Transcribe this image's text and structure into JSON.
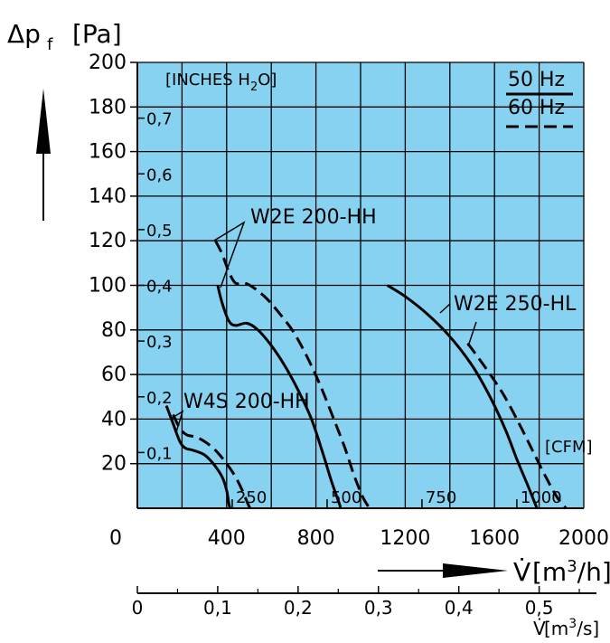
{
  "colors": {
    "plot_bg": "#87d2f0",
    "ink": "#000000",
    "page": "#ffffff"
  },
  "chart_data": {
    "type": "line",
    "title": "",
    "ylabel": {
      "symbol": "Δp",
      "sub": "f",
      "unit": "[Pa]"
    },
    "xlabel": {
      "symbol": "V̇",
      "unit_pre": "[m",
      "sup": "3",
      "unit_post": "/h]"
    },
    "xlabel2": {
      "symbol": "V̇",
      "unit_pre": "[m",
      "sup": "3",
      "unit_post": "/s]"
    },
    "xlim": [
      0,
      2000
    ],
    "ylim": [
      0,
      200
    ],
    "grid": true,
    "x_ticks": [
      "0",
      "400",
      "800",
      "1200",
      "1600",
      "2000"
    ],
    "y_ticks": [
      "20",
      "40",
      "60",
      "80",
      "100",
      "120",
      "140",
      "160",
      "180",
      "200"
    ],
    "x2_ticks": [
      "0",
      "0,1",
      "0,2",
      "0,3",
      "0,4",
      "0,5"
    ],
    "inches_label": {
      "pre": "[INCHES H",
      "sub": "2",
      "post": "O]"
    },
    "inches_ticks": [
      {
        "label": "0,1",
        "y": 25
      },
      {
        "label": "0,2",
        "y": 50
      },
      {
        "label": "0,3",
        "y": 75
      },
      {
        "label": "0,4",
        "y": 100
      },
      {
        "label": "0,5",
        "y": 125
      },
      {
        "label": "0,6",
        "y": 150
      },
      {
        "label": "0,7",
        "y": 175
      }
    ],
    "cfm_label": "[CFM]",
    "cfm_ticks": [
      {
        "label": "250",
        "x": 425
      },
      {
        "label": "500",
        "x": 850
      },
      {
        "label": "750",
        "x": 1275
      },
      {
        "label": "1000",
        "x": 1700
      }
    ],
    "legend": {
      "position": "top-right",
      "entries": [
        {
          "label": "50 Hz",
          "style": "solid"
        },
        {
          "label": "60 Hz",
          "style": "dashed"
        }
      ]
    },
    "series": [
      {
        "group": "W4S 200-HH",
        "freq": "50 Hz",
        "style": "solid",
        "points": [
          [
            130,
            46
          ],
          [
            160,
            38
          ],
          [
            190,
            30
          ],
          [
            215,
            27
          ],
          [
            250,
            26
          ],
          [
            300,
            24
          ],
          [
            340,
            20
          ],
          [
            380,
            14
          ],
          [
            400,
            8
          ],
          [
            410,
            2
          ],
          [
            415,
            0
          ]
        ]
      },
      {
        "group": "W4S 200-HH",
        "freq": "60 Hz",
        "style": "dashed",
        "points": [
          [
            160,
            42
          ],
          [
            190,
            36
          ],
          [
            220,
            33
          ],
          [
            260,
            32
          ],
          [
            300,
            30
          ],
          [
            350,
            26
          ],
          [
            400,
            20
          ],
          [
            440,
            14
          ],
          [
            470,
            8
          ],
          [
            495,
            2
          ],
          [
            505,
            0
          ]
        ]
      },
      {
        "group": "W2E 200-HH",
        "freq": "50 Hz",
        "style": "solid",
        "points": [
          [
            360,
            100
          ],
          [
            380,
            92
          ],
          [
            410,
            84
          ],
          [
            440,
            82
          ],
          [
            490,
            83
          ],
          [
            540,
            80
          ],
          [
            600,
            73
          ],
          [
            660,
            64
          ],
          [
            720,
            53
          ],
          [
            780,
            40
          ],
          [
            830,
            25
          ],
          [
            870,
            12
          ],
          [
            905,
            2
          ],
          [
            910,
            0
          ]
        ]
      },
      {
        "group": "W2E 200-HH",
        "freq": "60 Hz",
        "style": "dashed",
        "points": [
          [
            350,
            120
          ],
          [
            380,
            114
          ],
          [
            410,
            106
          ],
          [
            440,
            101
          ],
          [
            480,
            101
          ],
          [
            520,
            99
          ],
          [
            580,
            94
          ],
          [
            640,
            87
          ],
          [
            700,
            79
          ],
          [
            760,
            68
          ],
          [
            820,
            55
          ],
          [
            880,
            40
          ],
          [
            930,
            27
          ],
          [
            970,
            15
          ],
          [
            1010,
            5
          ],
          [
            1040,
            0
          ]
        ]
      },
      {
        "group": "W2E 250-HL",
        "freq": "50 Hz",
        "style": "solid",
        "points": [
          [
            1120,
            100
          ],
          [
            1200,
            95
          ],
          [
            1300,
            87
          ],
          [
            1400,
            77
          ],
          [
            1500,
            64
          ],
          [
            1580,
            50
          ],
          [
            1650,
            35
          ],
          [
            1700,
            22
          ],
          [
            1750,
            10
          ],
          [
            1790,
            0
          ]
        ]
      },
      {
        "group": "W2E 250-HL",
        "freq": "60 Hz",
        "style": "dashed",
        "points": [
          [
            1480,
            74
          ],
          [
            1560,
            63
          ],
          [
            1640,
            51
          ],
          [
            1710,
            38
          ],
          [
            1770,
            26
          ],
          [
            1830,
            14
          ],
          [
            1880,
            5
          ],
          [
            1920,
            0
          ]
        ]
      }
    ],
    "annotations": [
      {
        "text": "W2E 200-HH",
        "targets": [
          [
            350,
            120
          ],
          [
            360,
            100
          ]
        ]
      },
      {
        "text": "W2E 250-HL",
        "targets": [
          [
            1400,
            77
          ],
          [
            1500,
            75
          ]
        ]
      },
      {
        "text": "W4S 200-HH",
        "targets": [
          [
            160,
            42
          ],
          [
            140,
            44
          ]
        ]
      }
    ]
  }
}
